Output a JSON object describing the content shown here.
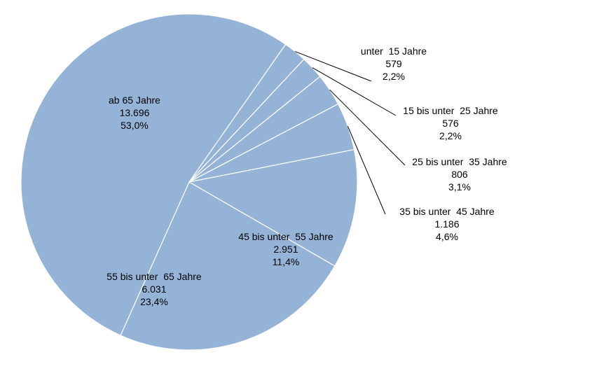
{
  "chart_data": {
    "type": "pie",
    "title": "",
    "slices": [
      {
        "label": "unter  15 Jahre",
        "value": "579",
        "share": "2,2%",
        "number": 579,
        "percent": 2.2
      },
      {
        "label": "15 bis unter  25 Jahre",
        "value": "576",
        "share": "2,2%",
        "number": 576,
        "percent": 2.2
      },
      {
        "label": "25 bis unter  35 Jahre",
        "value": "806",
        "share": "3,1%",
        "number": 806,
        "percent": 3.1
      },
      {
        "label": "35 bis unter  45 Jahre",
        "value": "1.186",
        "share": "4,6%",
        "number": 1186,
        "percent": 4.6
      },
      {
        "label": "45 bis unter  55 Jahre",
        "value": "2.951",
        "share": "11,4%",
        "number": 2951,
        "percent": 11.4
      },
      {
        "label": "55 bis unter  65 Jahre",
        "value": "6.031",
        "share": "23,4%",
        "number": 6031,
        "percent": 23.4
      },
      {
        "label": "ab 65 Jahre",
        "value": "13.696",
        "share": "53,0%",
        "number": 13696,
        "percent": 53.0
      }
    ],
    "slice_color": "#95b3d7",
    "edge_color": "#ffffff",
    "label_color": "#000000",
    "legend": "none"
  }
}
